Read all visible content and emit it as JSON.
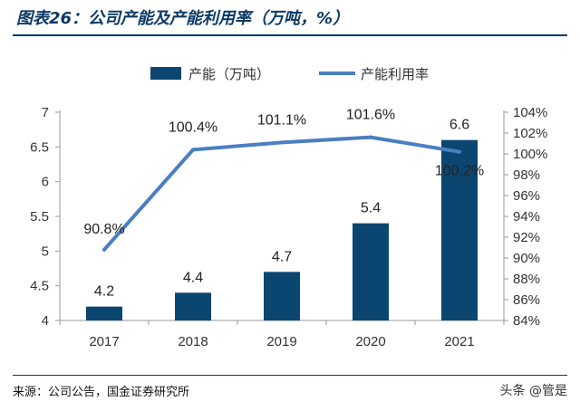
{
  "header": {
    "title": "图表26：公司产能及产能利用率（万吨，%）"
  },
  "footer": {
    "source": "来源：公司公告，国金证券研究所",
    "watermark": "头条 @管是"
  },
  "colors": {
    "bar": "#0b4670",
    "line": "#4a7fc1",
    "title": "#0b3a66"
  },
  "chart_data": {
    "type": "bar",
    "categories": [
      "2017",
      "2018",
      "2019",
      "2020",
      "2021"
    ],
    "series": [
      {
        "name": "产能（万吨）",
        "type": "bar",
        "axis": "left",
        "values": [
          4.2,
          4.4,
          4.7,
          5.4,
          6.6
        ],
        "labels": [
          "4.2",
          "4.4",
          "4.7",
          "5.4",
          "6.6"
        ]
      },
      {
        "name": "产能利用率",
        "type": "line",
        "axis": "right",
        "values": [
          90.8,
          100.4,
          101.1,
          101.6,
          100.2
        ],
        "labels": [
          "90.8%",
          "100.4%",
          "101.1%",
          "101.6%",
          "100.2%"
        ]
      }
    ],
    "ylim_left": [
      4,
      7
    ],
    "yticks_left": [
      "4",
      "4.5",
      "5",
      "5.5",
      "6",
      "6.5",
      "7"
    ],
    "ylim_right": [
      84,
      104
    ],
    "yticks_right": [
      "84%",
      "86%",
      "88%",
      "90%",
      "92%",
      "94%",
      "96%",
      "98%",
      "100%",
      "102%",
      "104%"
    ],
    "legend_position": "top",
    "grid": false
  }
}
